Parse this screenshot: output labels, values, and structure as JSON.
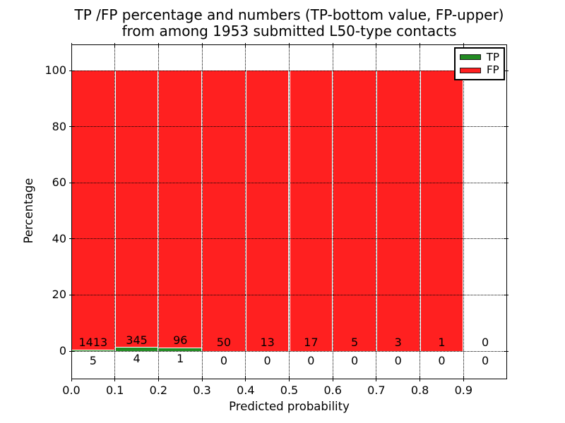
{
  "title": {
    "line1": "TP /FP percentage and numbers (TP-bottom value, FP-upper)",
    "line2": "from among 1953 submitted L50-type contacts"
  },
  "x_axis": {
    "label": "Predicted probability",
    "tick_labels": [
      "0.0",
      "0.1",
      "0.2",
      "0.3",
      "0.4",
      "0.5",
      "0.6",
      "0.7",
      "0.8",
      "0.9"
    ]
  },
  "y_axis": {
    "label": "Percentage",
    "tick_values": [
      0,
      20,
      40,
      60,
      80,
      100
    ]
  },
  "legend": {
    "position": "upper right",
    "items": [
      {
        "label": "TP",
        "color": "#228b22"
      },
      {
        "label": "FP",
        "color": "#ff2020"
      }
    ]
  },
  "chart_data": {
    "type": "bar",
    "stacked": true,
    "normalized": "each bin stacked to 100 percent",
    "title": "TP /FP percentage and numbers (TP-bottom value, FP-upper) from among 1953 submitted L50-type contacts",
    "xlabel": "Predicted probability",
    "ylabel": "Percentage",
    "total_contacts": 1953,
    "bin_edges": [
      0.0,
      0.1,
      0.2,
      0.3,
      0.4,
      0.5,
      0.6,
      0.7,
      0.8,
      0.9,
      1.0
    ],
    "categories": [
      "0.0-0.1",
      "0.1-0.2",
      "0.2-0.3",
      "0.3-0.4",
      "0.4-0.5",
      "0.5-0.6",
      "0.6-0.7",
      "0.7-0.8",
      "0.8-0.9",
      "0.9-1.0"
    ],
    "series": [
      {
        "name": "TP",
        "color": "#228b22",
        "counts": [
          5,
          4,
          1,
          0,
          0,
          0,
          0,
          0,
          0,
          0
        ]
      },
      {
        "name": "FP",
        "color": "#ff2020",
        "counts": [
          1413,
          345,
          96,
          50,
          13,
          17,
          5,
          3,
          1,
          0
        ]
      }
    ],
    "xlim": [
      0.0,
      1.0
    ],
    "ylim": [
      -10,
      110
    ],
    "grid": "dotted",
    "legend_position": "upper right"
  }
}
